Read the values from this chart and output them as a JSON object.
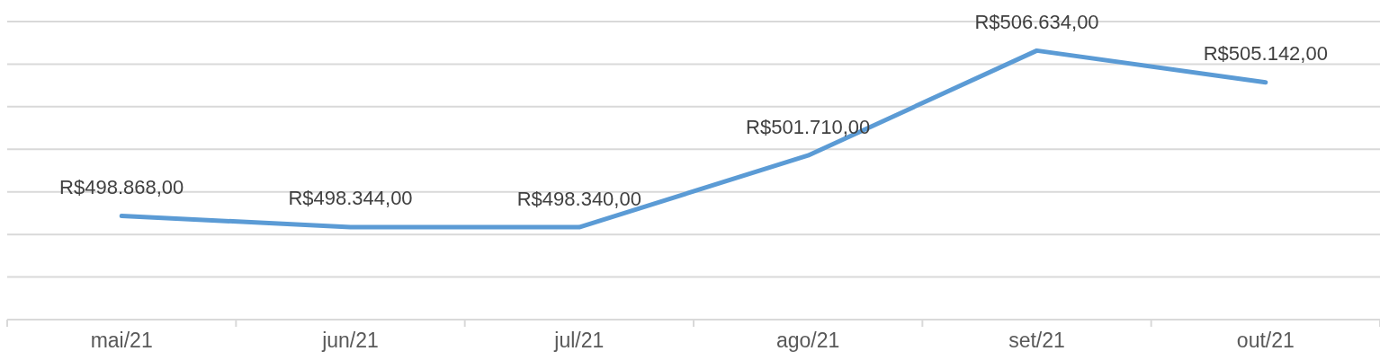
{
  "chart_data": {
    "type": "line",
    "categories": [
      "mai/21",
      "jun/21",
      "jul/21",
      "ago/21",
      "set/21",
      "out/21"
    ],
    "series": [
      {
        "color": "#5b9bd5",
        "values": [
          498868,
          498344,
          498340,
          501710,
          506634,
          505142
        ],
        "value_labels": [
          "R$498.868,00",
          "R$498.344,00",
          "R$498.340,00",
          "R$501.710,00",
          "R$506.634,00",
          "R$505.142,00"
        ]
      }
    ],
    "ylim": [
      494000,
      508000
    ],
    "yticks": [
      {
        "value": 494000,
        "label": null
      },
      {
        "value": 496000,
        "label": null
      },
      {
        "value": 498000,
        "label": null
      },
      {
        "value": 500000,
        "label": null
      },
      {
        "value": 502000,
        "label": null
      },
      {
        "value": 504000,
        "label": null
      },
      {
        "value": 506000,
        "label": null
      },
      {
        "value": 508000,
        "label": null
      }
    ],
    "tick_labels": "x",
    "grid": "y",
    "line_style": "solid"
  }
}
